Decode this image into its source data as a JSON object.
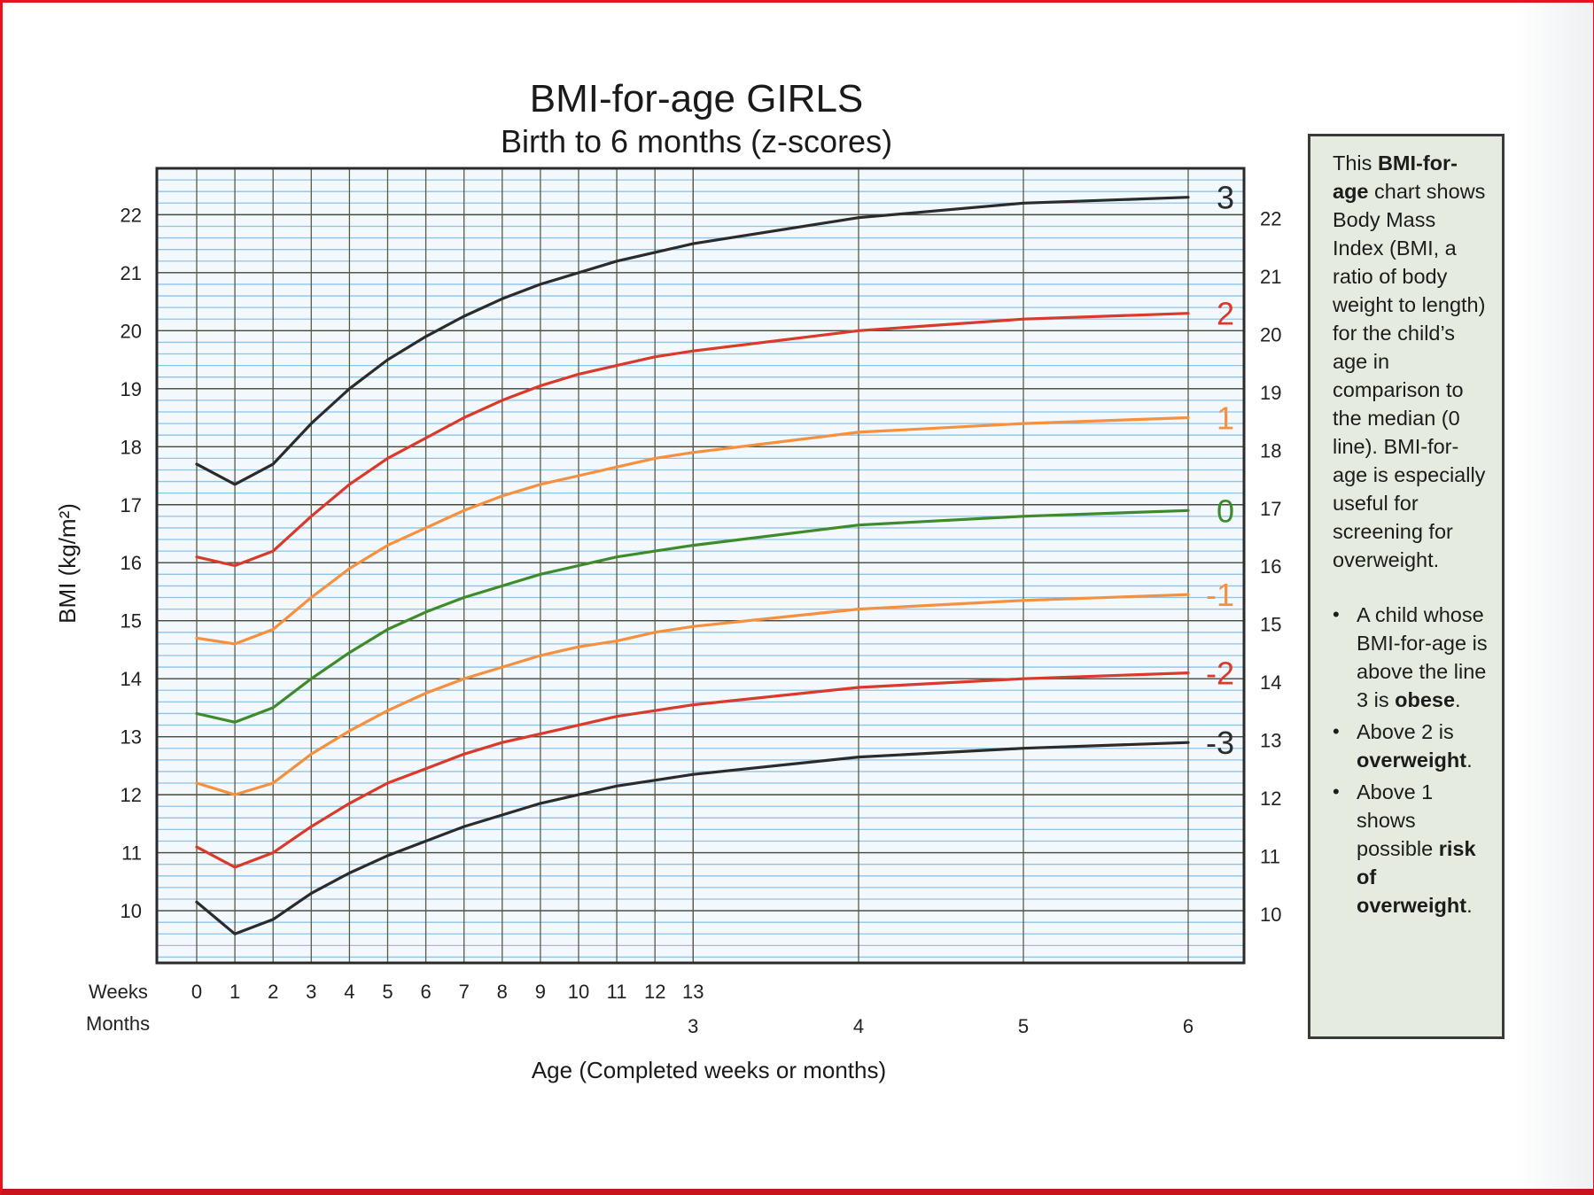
{
  "chart_data": {
    "type": "line",
    "title": "BMI-for-age  GIRLS",
    "subtitle": "Birth to 6 months (z-scores)",
    "ylabel": "BMI (kg/m²)",
    "xlabel": "Age (Completed weeks or months)",
    "ylim": [
      9.1,
      22.8
    ],
    "grid": true,
    "y_ticks": [
      10,
      11,
      12,
      13,
      14,
      15,
      16,
      17,
      18,
      19,
      20,
      21,
      22
    ],
    "x_row_labels": {
      "weeks": "Weeks",
      "months": "Months"
    },
    "week_ticks": [
      0,
      1,
      2,
      3,
      4,
      5,
      6,
      7,
      8,
      9,
      10,
      11,
      12,
      13
    ],
    "month_ticks": [
      3,
      4,
      5,
      6
    ],
    "x_weeks": [
      0,
      1,
      2,
      3,
      4,
      5,
      6,
      7,
      8,
      9,
      10,
      11,
      12,
      13,
      17.4,
      21.7,
      26.1
    ],
    "series": [
      {
        "name": "3",
        "color": "#2b2b2b",
        "values": [
          17.7,
          17.35,
          17.7,
          18.4,
          19.0,
          19.5,
          19.9,
          20.25,
          20.55,
          20.8,
          21.0,
          21.2,
          21.35,
          21.5,
          21.95,
          22.2,
          22.3
        ]
      },
      {
        "name": "2",
        "color": "#d93a2a",
        "values": [
          16.1,
          15.95,
          16.2,
          16.8,
          17.35,
          17.8,
          18.15,
          18.5,
          18.8,
          19.05,
          19.25,
          19.4,
          19.55,
          19.65,
          20.0,
          20.2,
          20.3
        ]
      },
      {
        "name": "1",
        "color": "#f5903f",
        "values": [
          14.7,
          14.6,
          14.85,
          15.4,
          15.9,
          16.3,
          16.6,
          16.9,
          17.15,
          17.35,
          17.5,
          17.65,
          17.8,
          17.9,
          18.25,
          18.4,
          18.5
        ]
      },
      {
        "name": "0",
        "color": "#3d8b2a",
        "values": [
          13.4,
          13.25,
          13.5,
          14.0,
          14.45,
          14.85,
          15.15,
          15.4,
          15.6,
          15.8,
          15.95,
          16.1,
          16.2,
          16.3,
          16.65,
          16.8,
          16.9
        ]
      },
      {
        "name": "-1",
        "color": "#f5903f",
        "values": [
          12.2,
          12.0,
          12.2,
          12.7,
          13.1,
          13.45,
          13.75,
          14.0,
          14.2,
          14.4,
          14.55,
          14.65,
          14.8,
          14.9,
          15.2,
          15.35,
          15.45
        ]
      },
      {
        "name": "-2",
        "color": "#d93a2a",
        "values": [
          11.1,
          10.75,
          11.0,
          11.45,
          11.85,
          12.2,
          12.45,
          12.7,
          12.9,
          13.05,
          13.2,
          13.35,
          13.45,
          13.55,
          13.85,
          14.0,
          14.1
        ]
      },
      {
        "name": "-3",
        "color": "#2b2b2b",
        "values": [
          10.15,
          9.6,
          9.85,
          10.3,
          10.65,
          10.95,
          11.2,
          11.45,
          11.65,
          11.85,
          12.0,
          12.15,
          12.25,
          12.35,
          12.65,
          12.8,
          12.9
        ]
      }
    ]
  },
  "info_box": {
    "p1_t1": "This ",
    "p1_b1": "BMI-for-age",
    "p1_t2": " chart shows Body Mass Index (BMI, a ratio of body weight to length) for the child’s age in comparison to the median (0 line).  BMI-for-age is especially useful for screening for overweight.",
    "b1_text": "A child whose BMI-for-age is above the line 3 is ",
    "b1_bold": "obese",
    "b2_text": "Above 2 is ",
    "b2_bold": "overweight",
    "b3_text": "Above 1 shows possible ",
    "b3_bold": "risk of overweight",
    "end": "."
  }
}
